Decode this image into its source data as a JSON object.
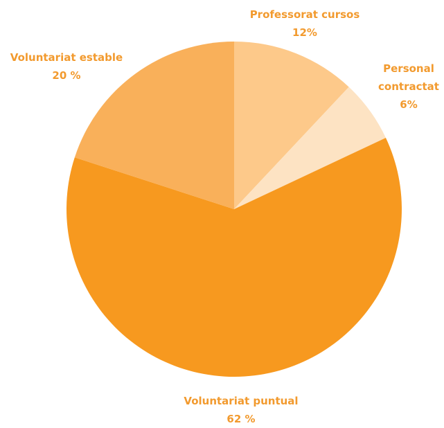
{
  "chart_data": {
    "type": "pie",
    "categories": [
      "Professorat cursos",
      "Personal contractat",
      "Voluntariat puntual",
      "Voluntariat estable"
    ],
    "values": [
      12,
      6,
      62,
      20
    ],
    "value_labels": [
      "12%",
      "6%",
      "62 %",
      "20 %"
    ],
    "colors": [
      "#fdc98a",
      "#fde3c3",
      "#f7991f",
      "#f9b05a"
    ]
  }
}
